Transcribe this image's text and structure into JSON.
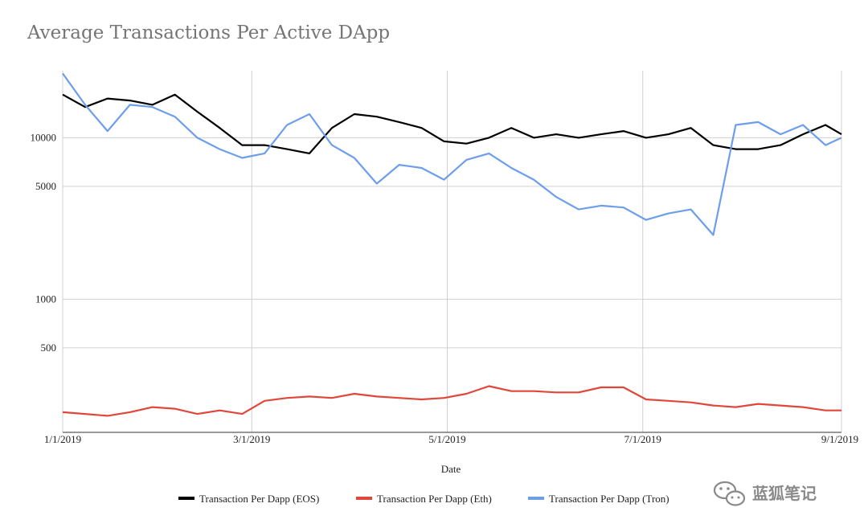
{
  "chart_data": {
    "type": "line",
    "title": "Average Transactions Per Active DApp",
    "xlabel": "Date",
    "ylabel": "",
    "yscale": "log",
    "ylim": [
      150,
      26000
    ],
    "xlim": [
      "1/1/2019",
      "9/1/2019"
    ],
    "x_ticks": [
      "1/1/2019",
      "3/1/2019",
      "5/1/2019",
      "7/1/2019",
      "9/1/2019"
    ],
    "y_ticks": [
      500,
      1000,
      5000,
      10000
    ],
    "grid": true,
    "legend_position": "bottom",
    "series": [
      {
        "name": "Transaction Per Dapp  (EOS)",
        "color": "#000000",
        "points": [
          [
            "1/1/2019",
            18500
          ],
          [
            "1/8/2019",
            15500
          ],
          [
            "1/15/2019",
            17500
          ],
          [
            "1/22/2019",
            17000
          ],
          [
            "1/29/2019",
            16000
          ],
          [
            "2/5/2019",
            18500
          ],
          [
            "2/12/2019",
            14500
          ],
          [
            "2/19/2019",
            11500
          ],
          [
            "2/26/2019",
            9000
          ],
          [
            "3/5/2019",
            9000
          ],
          [
            "3/12/2019",
            8500
          ],
          [
            "3/19/2019",
            8000
          ],
          [
            "3/26/2019",
            11500
          ],
          [
            "4/2/2019",
            14000
          ],
          [
            "4/9/2019",
            13500
          ],
          [
            "4/16/2019",
            12500
          ],
          [
            "4/23/2019",
            11500
          ],
          [
            "4/30/2019",
            9500
          ],
          [
            "5/7/2019",
            9200
          ],
          [
            "5/14/2019",
            10000
          ],
          [
            "5/21/2019",
            11500
          ],
          [
            "5/28/2019",
            10000
          ],
          [
            "6/4/2019",
            10500
          ],
          [
            "6/11/2019",
            10000
          ],
          [
            "6/18/2019",
            10500
          ],
          [
            "6/25/2019",
            11000
          ],
          [
            "7/2/2019",
            10000
          ],
          [
            "7/9/2019",
            10500
          ],
          [
            "7/16/2019",
            11500
          ],
          [
            "7/23/2019",
            9000
          ],
          [
            "7/30/2019",
            8500
          ],
          [
            "8/6/2019",
            8500
          ],
          [
            "8/13/2019",
            9000
          ],
          [
            "8/20/2019",
            10500
          ],
          [
            "8/27/2019",
            12000
          ],
          [
            "9/1/2019",
            10500
          ]
        ]
      },
      {
        "name": "Transaction Per Dapp  (Eth)",
        "color": "#e0473a",
        "points": [
          [
            "1/1/2019",
            200
          ],
          [
            "1/8/2019",
            195
          ],
          [
            "1/15/2019",
            190
          ],
          [
            "1/22/2019",
            200
          ],
          [
            "1/29/2019",
            215
          ],
          [
            "2/5/2019",
            210
          ],
          [
            "2/12/2019",
            195
          ],
          [
            "2/19/2019",
            205
          ],
          [
            "2/26/2019",
            195
          ],
          [
            "3/5/2019",
            235
          ],
          [
            "3/12/2019",
            245
          ],
          [
            "3/19/2019",
            250
          ],
          [
            "3/26/2019",
            245
          ],
          [
            "4/2/2019",
            260
          ],
          [
            "4/9/2019",
            250
          ],
          [
            "4/16/2019",
            245
          ],
          [
            "4/23/2019",
            240
          ],
          [
            "4/30/2019",
            245
          ],
          [
            "5/7/2019",
            260
          ],
          [
            "5/14/2019",
            290
          ],
          [
            "5/21/2019",
            270
          ],
          [
            "5/28/2019",
            270
          ],
          [
            "6/4/2019",
            265
          ],
          [
            "6/11/2019",
            265
          ],
          [
            "6/18/2019",
            285
          ],
          [
            "6/25/2019",
            285
          ],
          [
            "7/2/2019",
            240
          ],
          [
            "7/9/2019",
            235
          ],
          [
            "7/16/2019",
            230
          ],
          [
            "7/23/2019",
            220
          ],
          [
            "7/30/2019",
            215
          ],
          [
            "8/6/2019",
            225
          ],
          [
            "8/13/2019",
            220
          ],
          [
            "8/20/2019",
            215
          ],
          [
            "8/27/2019",
            205
          ],
          [
            "9/1/2019",
            205
          ]
        ]
      },
      {
        "name": "Transaction Per Dapp (Tron)",
        "color": "#6d9eeb",
        "points": [
          [
            "1/1/2019",
            25000
          ],
          [
            "1/8/2019",
            16000
          ],
          [
            "1/15/2019",
            11000
          ],
          [
            "1/22/2019",
            16000
          ],
          [
            "1/29/2019",
            15500
          ],
          [
            "2/5/2019",
            13500
          ],
          [
            "2/12/2019",
            10000
          ],
          [
            "2/19/2019",
            8500
          ],
          [
            "2/26/2019",
            7500
          ],
          [
            "3/5/2019",
            8000
          ],
          [
            "3/12/2019",
            12000
          ],
          [
            "3/19/2019",
            14000
          ],
          [
            "3/26/2019",
            9000
          ],
          [
            "4/2/2019",
            7500
          ],
          [
            "4/9/2019",
            5200
          ],
          [
            "4/16/2019",
            6800
          ],
          [
            "4/23/2019",
            6500
          ],
          [
            "4/30/2019",
            5500
          ],
          [
            "5/7/2019",
            7300
          ],
          [
            "5/14/2019",
            8000
          ],
          [
            "5/21/2019",
            6500
          ],
          [
            "5/28/2019",
            5500
          ],
          [
            "6/4/2019",
            4300
          ],
          [
            "6/11/2019",
            3600
          ],
          [
            "6/18/2019",
            3800
          ],
          [
            "6/25/2019",
            3700
          ],
          [
            "7/2/2019",
            3100
          ],
          [
            "7/9/2019",
            3400
          ],
          [
            "7/16/2019",
            3600
          ],
          [
            "7/23/2019",
            2500
          ],
          [
            "7/30/2019",
            12000
          ],
          [
            "8/6/2019",
            12500
          ],
          [
            "8/13/2019",
            10500
          ],
          [
            "8/20/2019",
            12000
          ],
          [
            "8/27/2019",
            9000
          ],
          [
            "9/1/2019",
            10000
          ]
        ]
      }
    ]
  },
  "watermark": {
    "text": "蓝狐笔记",
    "icon": "wechat-icon"
  }
}
